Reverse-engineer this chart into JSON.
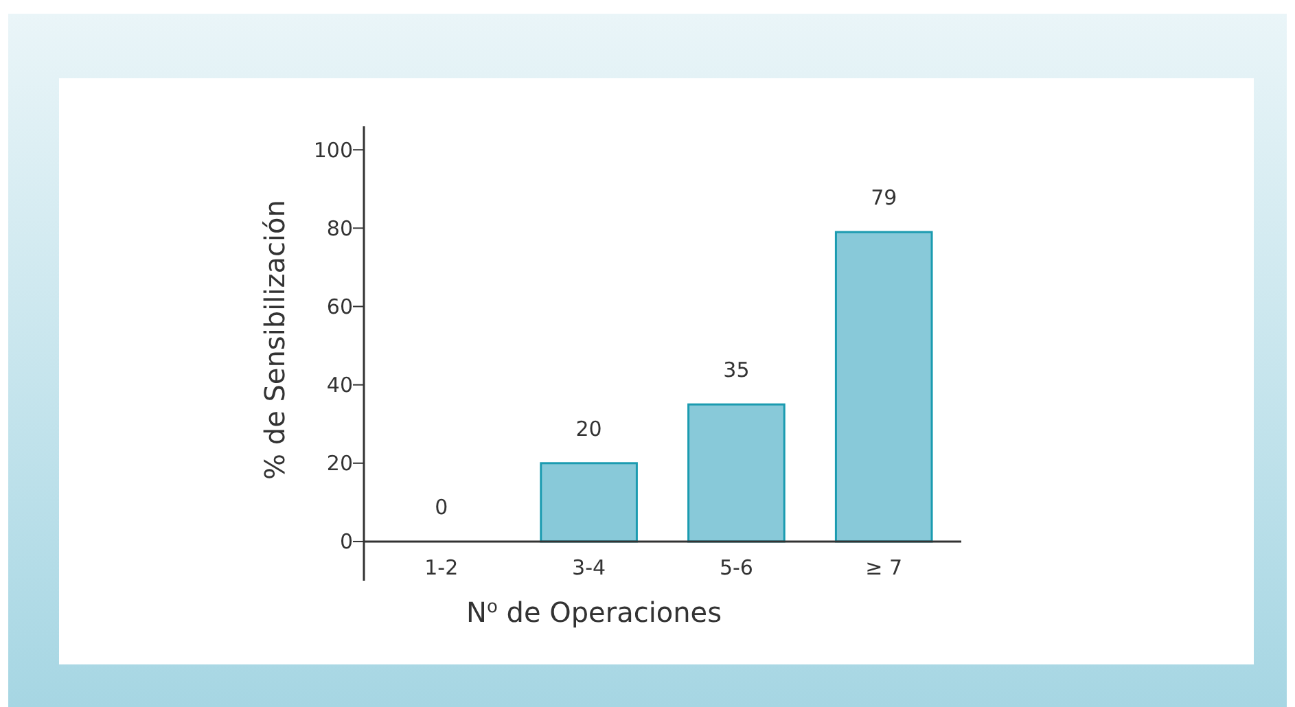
{
  "chart_data": {
    "type": "bar",
    "xlabel": "N$^{o}$ de Operaciones",
    "ylabel": "% de Sensibilización",
    "categories": [
      "1-2",
      "3-4",
      "5-6",
      "≥ 7"
    ],
    "values": [
      0,
      20,
      35,
      79
    ],
    "color": "#88c9d9",
    "ylim": [
      -10,
      106
    ],
    "yticks": [
      0,
      20,
      40,
      60,
      80,
      100
    ],
    "grid": false,
    "data_labels": true
  }
}
